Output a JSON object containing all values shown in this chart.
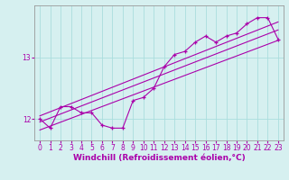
{
  "xlabel": "Windchill (Refroidissement éolien,°C)",
  "background_color": "#d6f0f0",
  "line_color": "#aa00aa",
  "grid_color": "#aadddd",
  "x_data": [
    0,
    1,
    2,
    3,
    4,
    5,
    6,
    7,
    8,
    9,
    10,
    11,
    12,
    13,
    14,
    15,
    16,
    17,
    18,
    19,
    20,
    21,
    22,
    23
  ],
  "y_data": [
    12.0,
    11.85,
    12.2,
    12.2,
    12.1,
    12.1,
    11.9,
    11.85,
    11.85,
    12.3,
    12.35,
    12.5,
    12.85,
    13.05,
    13.1,
    13.25,
    13.35,
    13.25,
    13.35,
    13.4,
    13.55,
    13.65,
    13.65,
    13.3
  ],
  "reg_line1_y": [
    11.95,
    13.45
  ],
  "reg_line2_y": [
    12.05,
    13.58
  ],
  "reg_line3_y": [
    11.82,
    13.28
  ],
  "ylim": [
    11.65,
    13.85
  ],
  "xlim": [
    -0.5,
    23.5
  ],
  "yticks": [
    12,
    13
  ],
  "xticks": [
    0,
    1,
    2,
    3,
    4,
    5,
    6,
    7,
    8,
    9,
    10,
    11,
    12,
    13,
    14,
    15,
    16,
    17,
    18,
    19,
    20,
    21,
    22,
    23
  ],
  "tick_fontsize": 5.5,
  "xlabel_fontsize": 6.5
}
